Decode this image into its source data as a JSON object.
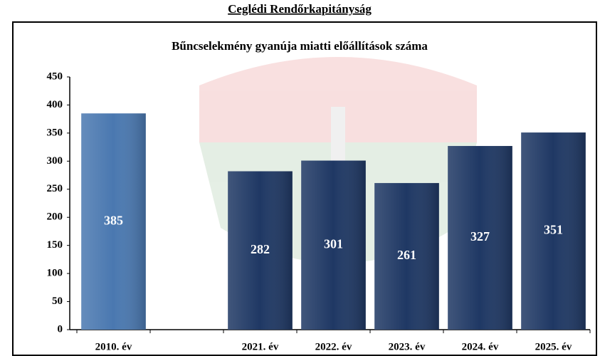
{
  "chart_data": {
    "type": "bar",
    "title": "Ceglédi Rendőrkapitányság",
    "subtitle": "Bűncselekmény gyanúja miatti előállítások száma",
    "categories": [
      "2010. év",
      null,
      "2021. év",
      "2022. év",
      "2023. év",
      "2024. év",
      "2025. év"
    ],
    "values": [
      385,
      null,
      282,
      301,
      261,
      327,
      351
    ],
    "colors": [
      "#4a78b0",
      null,
      "#1f3864",
      "#1f3864",
      "#1f3864",
      "#1f3864",
      "#1f3864"
    ],
    "ylim": [
      0,
      450
    ],
    "yticks": [
      0,
      50,
      100,
      150,
      200,
      250,
      300,
      350,
      400,
      450
    ],
    "grid": false
  }
}
